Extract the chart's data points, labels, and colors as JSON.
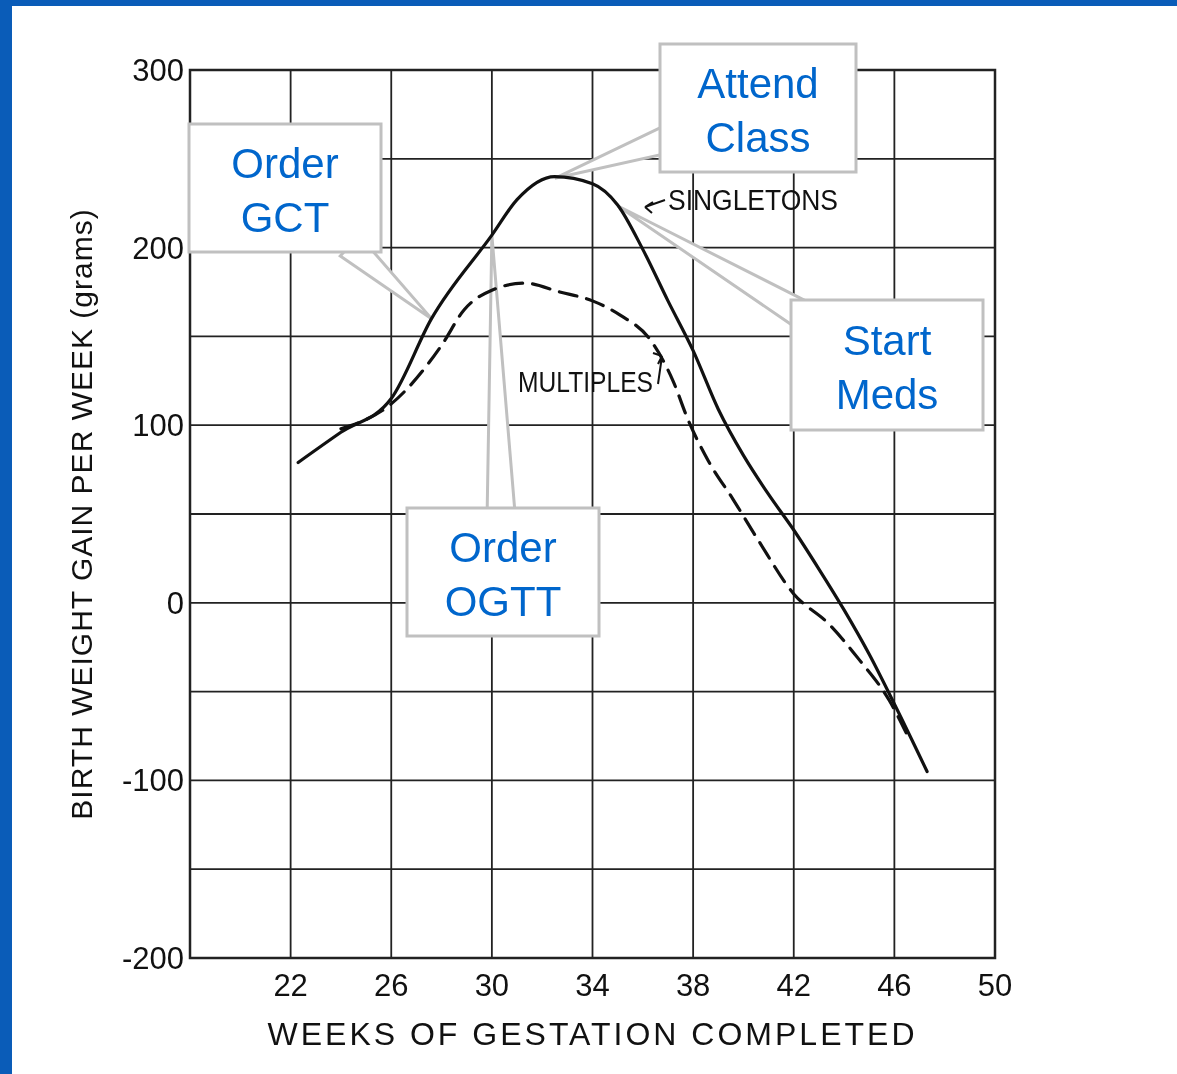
{
  "chart_data": {
    "type": "line",
    "xlabel": "WEEKS OF GESTATION COMPLETED",
    "ylabel": "BIRTH WEIGHT GAIN PER WEEK (grams)",
    "xlim": [
      18,
      50
    ],
    "xticks": [
      22,
      26,
      30,
      34,
      38,
      42,
      46,
      50
    ],
    "ylim": [
      -200,
      300
    ],
    "yticks": [
      -200,
      {
        "value": -150,
        "label": null
      },
      -100,
      {
        "value": -50,
        "label": null
      },
      0,
      {
        "value": 50,
        "label": null
      },
      100,
      {
        "value": 150,
        "label": null
      },
      200,
      {
        "value": 250,
        "label": null
      },
      300
    ],
    "grid": true,
    "series": [
      {
        "name": "SINGLETONS",
        "color": "#111111",
        "line_style": "solid",
        "x": [
          22.3,
          24,
          26,
          27.6,
          30,
          31,
          32.5,
          34,
          35,
          36,
          37,
          38,
          39,
          40,
          41,
          42,
          43,
          44,
          45,
          46,
          47.3
        ],
        "values": [
          79,
          96,
          115,
          160,
          207,
          227,
          240,
          236,
          224,
          199,
          170,
          142,
          109,
          83,
          61,
          41,
          19,
          -4,
          -29,
          -57,
          -95
        ]
      },
      {
        "name": "MULTIPLES",
        "color": "#111111",
        "line_style": "dashed",
        "x": [
          24,
          26,
          28,
          28.9,
          30,
          31.3,
          32.7,
          34,
          35.1,
          36.3,
          37.2,
          37.8,
          38.6,
          39.6,
          40.6,
          42,
          43.4,
          44.6,
          45.8,
          46.6
        ],
        "values": [
          98,
          112,
          145,
          165,
          176,
          180,
          175,
          170,
          162,
          148,
          125,
          103,
          80,
          58,
          35,
          5,
          -12,
          -32,
          -55,
          -77
        ]
      }
    ],
    "annotations": [
      {
        "text": "Order GCT",
        "x": 27.6,
        "y": 160
      },
      {
        "text": "Attend Class",
        "x": 32.5,
        "y": 239
      },
      "Start Meds",
      {
        "text": "Order OGTT",
        "x": 30,
        "y": 207
      }
    ]
  }
}
